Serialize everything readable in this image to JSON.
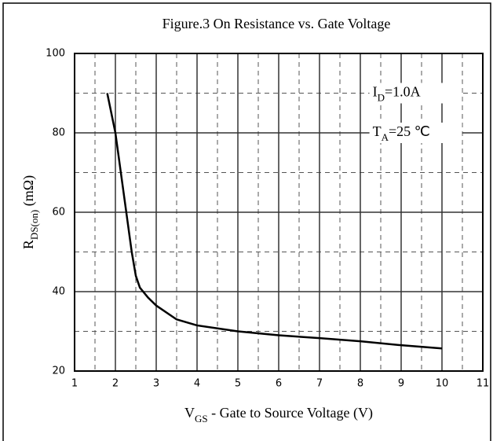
{
  "chart_data": {
    "type": "line",
    "title": "Figure.3 On Resistance vs. Gate Voltage",
    "y_label": {
      "main": "R",
      "sub": "DS(on)",
      "rest": " (mΩ)"
    },
    "x_label": {
      "main": "V",
      "sub": "GS",
      "rest": " - Gate to Source Voltage (V)"
    },
    "annotations": [
      {
        "main": "I",
        "sub": "D",
        "rest": "=1.0A"
      },
      {
        "main": "T",
        "sub": "A",
        "rest": "=25 ℃"
      }
    ],
    "xlim": [
      1,
      11
    ],
    "ylim": [
      20,
      100
    ],
    "xticks": [
      1,
      2,
      3,
      4,
      5,
      6,
      7,
      8,
      9,
      10,
      11
    ],
    "yticks": [
      20,
      40,
      60,
      80,
      100
    ],
    "x_minor_ticks": [
      1.5,
      2.5,
      3.5,
      4.5,
      5.5,
      6.5,
      7.5,
      8.5,
      9.5,
      10.5
    ],
    "y_minor_ticks": [
      30,
      50,
      70,
      90
    ],
    "grid": true,
    "series": [
      {
        "name": "ID=1.0A",
        "color": "#000000",
        "x": [
          1.8,
          2,
          2.2,
          2.4,
          2.5,
          2.6,
          2.8,
          3,
          3.5,
          4,
          5,
          6,
          7,
          8,
          9,
          10
        ],
        "values": [
          90,
          80,
          65,
          50,
          44,
          41,
          38.5,
          36.5,
          33,
          31.5,
          30,
          29,
          28.3,
          27.5,
          26.5,
          25.7
        ]
      }
    ]
  }
}
